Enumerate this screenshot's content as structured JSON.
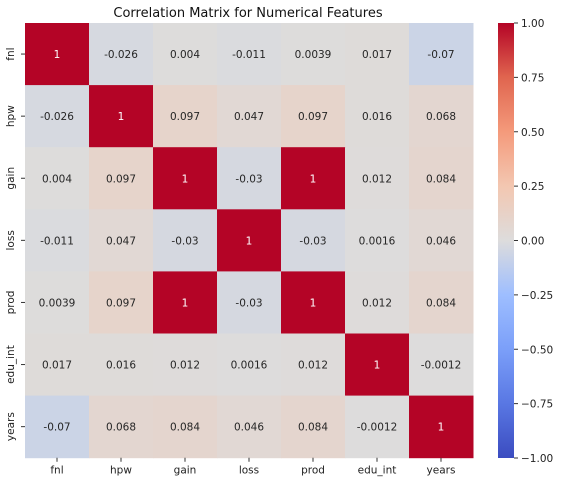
{
  "chart_data": {
    "type": "heatmap",
    "title": "Correlation Matrix for Numerical Features",
    "x_labels": [
      "fnl",
      "hpw",
      "gain",
      "loss",
      "prod",
      "edu_int",
      "years"
    ],
    "y_labels": [
      "fnl",
      "hpw",
      "gain",
      "loss",
      "prod",
      "edu_int",
      "years"
    ],
    "values": [
      [
        1,
        -0.026,
        0.004,
        -0.011,
        0.0039,
        0.017,
        -0.07
      ],
      [
        -0.026,
        1,
        0.097,
        0.047,
        0.097,
        0.016,
        0.068
      ],
      [
        0.004,
        0.097,
        1,
        -0.03,
        1,
        0.012,
        0.084
      ],
      [
        -0.011,
        0.047,
        -0.03,
        1,
        -0.03,
        0.0016,
        0.046
      ],
      [
        0.0039,
        0.097,
        1,
        -0.03,
        1,
        0.012,
        0.084
      ],
      [
        0.017,
        0.016,
        0.012,
        0.0016,
        0.012,
        1,
        -0.0012
      ],
      [
        -0.07,
        0.068,
        0.084,
        0.046,
        0.084,
        -0.0012,
        1
      ]
    ],
    "value_labels": [
      [
        "1",
        "-0.026",
        "0.004",
        "-0.011",
        "0.0039",
        "0.017",
        "-0.07"
      ],
      [
        "-0.026",
        "1",
        "0.097",
        "0.047",
        "0.097",
        "0.016",
        "0.068"
      ],
      [
        "0.004",
        "0.097",
        "1",
        "-0.03",
        "1",
        "0.012",
        "0.084"
      ],
      [
        "-0.011",
        "0.047",
        "-0.03",
        "1",
        "-0.03",
        "0.0016",
        "0.046"
      ],
      [
        "0.0039",
        "0.097",
        "1",
        "-0.03",
        "1",
        "0.012",
        "0.084"
      ],
      [
        "0.017",
        "0.016",
        "0.012",
        "0.0016",
        "0.012",
        "1",
        "-0.0012"
      ],
      [
        "-0.07",
        "0.068",
        "0.084",
        "0.046",
        "0.084",
        "-0.0012",
        "1"
      ]
    ],
    "colormap": "coolwarm",
    "colormap_anchors": [
      "#3b4cc0",
      "#dddddd",
      "#b40426"
    ],
    "vmin": -1,
    "vmax": 1,
    "colorbar_ticks": [
      1.0,
      0.75,
      0.5,
      0.25,
      0.0,
      -0.25,
      -0.5,
      -0.75,
      -1.0
    ],
    "colorbar_tick_labels": [
      "1.00",
      "0.75",
      "0.50",
      "0.25",
      "0.00",
      "−0.25",
      "−0.50",
      "−0.75",
      "−1.00"
    ],
    "grid": false,
    "legend": "colorbar-right"
  }
}
